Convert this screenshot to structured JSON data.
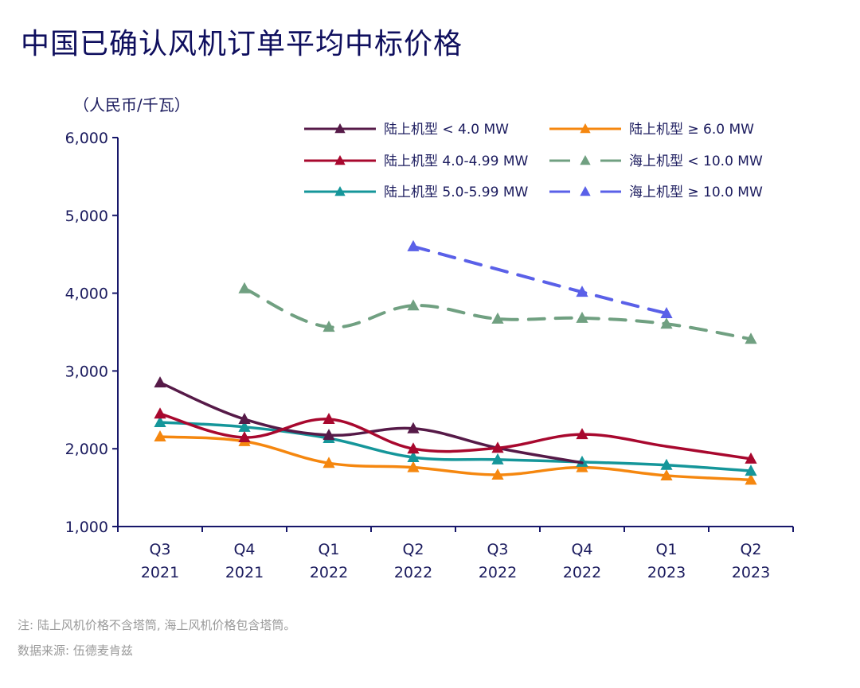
{
  "header": {
    "title": "中国已确认风机订单平均中标价格",
    "unit": "（人民币/千瓦）"
  },
  "footer": {
    "note": "注: 陆上风机价格不含塔筒, 海上风机价格包含塔筒。",
    "source": "数据来源: 伍德麦肯兹"
  },
  "chart_data": {
    "type": "line",
    "title": "中国已确认风机订单平均中标价格",
    "ylabel": "（人民币/千瓦）",
    "xlabel": "",
    "ylim": [
      1000,
      6000
    ],
    "yticks": [
      1000,
      2000,
      3000,
      4000,
      5000,
      6000
    ],
    "ytick_labels": [
      "1,000",
      "2,000",
      "3,000",
      "4,000",
      "5,000",
      "6,000"
    ],
    "grid": false,
    "legend_position": "top-right",
    "categories": [
      {
        "q": "Q3",
        "y": "2021"
      },
      {
        "q": "Q4",
        "y": "2021"
      },
      {
        "q": "Q1",
        "y": "2022"
      },
      {
        "q": "Q2",
        "y": "2022"
      },
      {
        "q": "Q3",
        "y": "2022"
      },
      {
        "q": "Q4",
        "y": "2022"
      },
      {
        "q": "Q1",
        "y": "2023"
      },
      {
        "q": "Q2",
        "y": "2023"
      }
    ],
    "series": [
      {
        "name": "陆上机型 < 4.0 MW",
        "color": "#561a48",
        "dashed": false,
        "values": [
          2850,
          2380,
          2175,
          2260,
          2010,
          1820,
          null,
          null
        ],
        "markers": [
          true,
          true,
          true,
          true,
          false,
          false,
          false,
          false
        ]
      },
      {
        "name": "陆上机型 ≥ 6.0 MW",
        "color": "#f5870f",
        "dashed": false,
        "values": [
          2155,
          2095,
          1815,
          1760,
          1665,
          1760,
          1655,
          1600
        ],
        "markers": [
          true,
          true,
          true,
          true,
          true,
          true,
          true,
          true
        ]
      },
      {
        "name": "陆上机型 4.0-4.99 MW",
        "color": "#a8082e",
        "dashed": false,
        "values": [
          2450,
          2145,
          2380,
          2000,
          2010,
          2185,
          2030,
          1870
        ],
        "markers": [
          true,
          true,
          true,
          true,
          true,
          true,
          false,
          true
        ]
      },
      {
        "name": "海上机型 < 10.0 MW",
        "color": "#70a081",
        "dashed": true,
        "values": [
          null,
          4060,
          3565,
          3840,
          3670,
          3680,
          3605,
          3410
        ],
        "markers": [
          false,
          true,
          true,
          true,
          true,
          true,
          true,
          true
        ]
      },
      {
        "name": "陆上机型 5.0-5.99 MW",
        "color": "#15969a",
        "dashed": false,
        "values": [
          2340,
          2280,
          2135,
          1890,
          1860,
          1830,
          1790,
          1715
        ],
        "markers": [
          true,
          true,
          true,
          true,
          true,
          true,
          true,
          true
        ]
      },
      {
        "name": "海上机型 ≥ 10.0 MW",
        "color": "#5a60e8",
        "dashed": true,
        "values": [
          null,
          null,
          null,
          4600,
          null,
          4015,
          3740,
          null
        ],
        "markers": [
          false,
          false,
          false,
          true,
          false,
          true,
          true,
          false
        ]
      }
    ]
  }
}
